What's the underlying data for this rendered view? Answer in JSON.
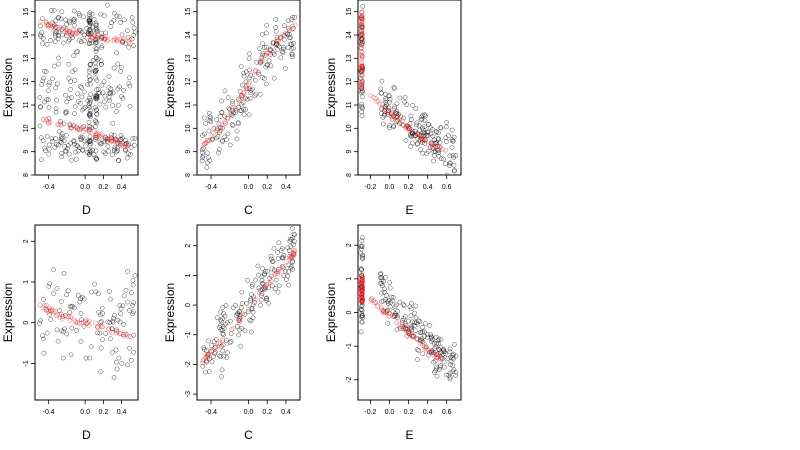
{
  "chart_data": [
    {
      "type": "scatter",
      "panel": "top-1",
      "xlabel": "D",
      "ylabel": "Expression",
      "xlim": [
        -0.55,
        0.58
      ],
      "ylim": [
        8,
        15.5
      ],
      "xticks": [
        -0.4,
        0.0,
        0.2,
        0.4
      ],
      "xtick_labels": [
        "-0.4",
        "0.0",
        "0.2",
        "0.4"
      ],
      "yticks": [
        8,
        9,
        10,
        11,
        12,
        13,
        14,
        15
      ],
      "ytick_labels": [
        "8",
        "9",
        "10",
        "11",
        "12",
        "13",
        "14",
        "15"
      ],
      "black_bands": [
        [
          -0.5,
          0.55,
          14.2,
          0.7
        ],
        [
          -0.5,
          0.55,
          9.3,
          0.5
        ],
        [
          -0.5,
          0.55,
          11.5,
          1.3
        ]
      ],
      "black_columns": [
        [
          0.05,
          8.8,
          15.0
        ],
        [
          0.12,
          8.6,
          14.8
        ]
      ],
      "red_curves": [
        {
          "x": [
            -0.5,
            -0.3,
            -0.1,
            0.1,
            0.3,
            0.5
          ],
          "y": [
            14.6,
            14.3,
            14.1,
            13.9,
            13.8,
            13.7
          ]
        },
        {
          "x": [
            -0.5,
            -0.3,
            -0.1,
            0.1,
            0.3,
            0.5
          ],
          "y": [
            10.4,
            10.2,
            10.0,
            9.8,
            9.5,
            9.2
          ]
        }
      ]
    },
    {
      "type": "scatter",
      "panel": "top-2",
      "xlabel": "C",
      "ylabel": "Expression",
      "xlim": [
        -0.55,
        0.55
      ],
      "ylim": [
        8,
        15.5
      ],
      "xticks": [
        -0.4,
        0.0,
        0.2,
        0.4
      ],
      "xtick_labels": [
        "-0.4",
        "0.0",
        "0.2",
        "0.4"
      ],
      "yticks": [
        8,
        9,
        10,
        11,
        12,
        13,
        14,
        15
      ],
      "ytick_labels": [
        "8",
        "9",
        "10",
        "11",
        "12",
        "13",
        "14",
        "15"
      ],
      "black_trend": {
        "x": [
          -0.5,
          -0.3,
          -0.1,
          0.1,
          0.3,
          0.5
        ],
        "y": [
          9.0,
          10.0,
          11.2,
          12.5,
          13.6,
          14.3
        ],
        "spread": 1.1
      },
      "red_curves": [
        {
          "x": [
            -0.5,
            -0.4,
            -0.3,
            -0.2,
            -0.1,
            0.0,
            0.1,
            0.2,
            0.3,
            0.4,
            0.5
          ],
          "y": [
            9.2,
            9.6,
            10.0,
            10.5,
            11.2,
            11.9,
            12.6,
            13.2,
            13.7,
            14.1,
            14.4
          ]
        }
      ]
    },
    {
      "type": "scatter",
      "panel": "top-3",
      "xlabel": "E",
      "ylabel": "Expression",
      "xlim": [
        -0.33,
        0.75
      ],
      "ylim": [
        8,
        15.5
      ],
      "xticks": [
        -0.2,
        0.0,
        0.2,
        0.4,
        0.6
      ],
      "xtick_labels": [
        "-0.2",
        "0.0",
        "0.2",
        "0.4",
        "0.6"
      ],
      "yticks": [
        8,
        9,
        10,
        11,
        12,
        13,
        14,
        15
      ],
      "ytick_labels": [
        "8",
        "9",
        "10",
        "11",
        "12",
        "13",
        "14",
        "15"
      ],
      "black_columns": [
        [
          -0.29,
          10.5,
          15.3
        ]
      ],
      "black_trend": {
        "x": [
          -0.1,
          0.1,
          0.3,
          0.5,
          0.7
        ],
        "y": [
          11.2,
          10.4,
          9.8,
          9.3,
          9.1
        ],
        "spread": 0.9
      },
      "red_curves": [
        {
          "x": [
            -0.29,
            -0.29
          ],
          "y": [
            11.5,
            15.0
          ]
        },
        {
          "x": [
            -0.2,
            0.0,
            0.2,
            0.4,
            0.6
          ],
          "y": [
            11.4,
            10.7,
            10.0,
            9.4,
            9.0
          ]
        }
      ]
    },
    {
      "type": "scatter",
      "panel": "bottom-1",
      "xlabel": "D",
      "ylabel": "Expression",
      "xlim": [
        -0.55,
        0.58
      ],
      "ylim": [
        -1.9,
        2.4
      ],
      "xticks": [
        -0.4,
        0.0,
        0.2,
        0.4
      ],
      "xtick_labels": [
        "-0.4",
        "0.0",
        "0.2",
        "0.4"
      ],
      "yticks": [
        -1,
        0,
        1,
        2
      ],
      "ytick_labels": [
        "-1",
        "0",
        "1",
        "2"
      ],
      "black_bands": [
        [
          -0.5,
          0.55,
          0.0,
          0.9
        ]
      ],
      "red_curves": [
        {
          "x": [
            -0.5,
            -0.3,
            -0.1,
            0.1,
            0.3,
            0.5
          ],
          "y": [
            0.45,
            0.2,
            0.05,
            -0.05,
            -0.2,
            -0.35
          ]
        }
      ]
    },
    {
      "type": "scatter",
      "panel": "bottom-2",
      "xlabel": "C",
      "ylabel": "Expression",
      "xlim": [
        -0.55,
        0.55
      ],
      "ylim": [
        -3.2,
        2.7
      ],
      "xticks": [
        -0.4,
        0.0,
        0.2,
        0.4
      ],
      "xtick_labels": [
        "-0.4",
        "0.0",
        "0.2",
        "0.4"
      ],
      "yticks": [
        -3,
        -2,
        -1,
        0,
        1,
        2
      ],
      "ytick_labels": [
        "-3",
        "-2",
        "-1",
        "0",
        "1",
        "2"
      ],
      "black_trend": {
        "x": [
          -0.5,
          -0.3,
          -0.1,
          0.1,
          0.3,
          0.5
        ],
        "y": [
          -2.0,
          -1.3,
          -0.5,
          0.4,
          1.2,
          1.9
        ],
        "spread": 0.8
      },
      "red_curves": [
        {
          "x": [
            -0.5,
            -0.4,
            -0.3,
            -0.2,
            -0.1,
            0.0,
            0.1,
            0.2,
            0.3,
            0.4,
            0.5
          ],
          "y": [
            -1.9,
            -1.6,
            -1.3,
            -0.9,
            -0.5,
            -0.1,
            0.3,
            0.7,
            1.1,
            1.4,
            1.8
          ]
        }
      ]
    },
    {
      "type": "scatter",
      "panel": "bottom-3",
      "xlabel": "E",
      "ylabel": "Expression",
      "xlim": [
        -0.33,
        0.75
      ],
      "ylim": [
        -2.6,
        2.6
      ],
      "xticks": [
        -0.2,
        0.0,
        0.2,
        0.4,
        0.6
      ],
      "xtick_labels": [
        "-0.2",
        "0.0",
        "0.2",
        "0.4",
        "0.6"
      ],
      "yticks": [
        -2,
        -1,
        0,
        1,
        2
      ],
      "ytick_labels": [
        "-2",
        "-1",
        "0",
        "1",
        "2"
      ],
      "black_columns": [
        [
          -0.29,
          -0.6,
          2.3
        ]
      ],
      "black_trend": {
        "x": [
          -0.1,
          0.1,
          0.3,
          0.5,
          0.7
        ],
        "y": [
          0.8,
          0.0,
          -0.7,
          -1.2,
          -1.5
        ],
        "spread": 0.6
      },
      "red_curves": [
        {
          "x": [
            -0.29,
            -0.29
          ],
          "y": [
            0.3,
            1.1
          ]
        },
        {
          "x": [
            -0.2,
            0.0,
            0.2,
            0.4,
            0.6
          ],
          "y": [
            0.4,
            -0.1,
            -0.6,
            -1.1,
            -1.5
          ]
        }
      ]
    }
  ]
}
